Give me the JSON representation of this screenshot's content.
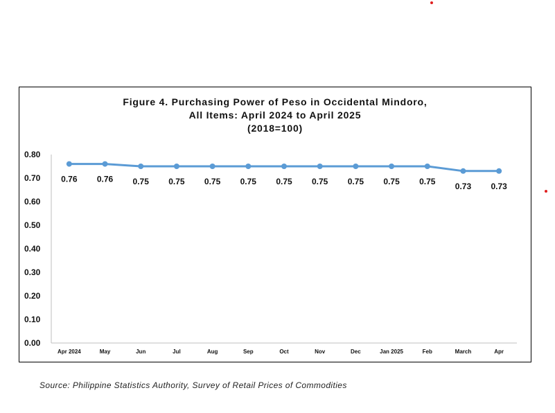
{
  "chart_data": {
    "type": "line",
    "title": [
      "Figure 4. Purchasing Power of Peso in Occidental Mindoro,",
      "All Items: April 2024 to April 2025",
      "(2018=100)"
    ],
    "categories": [
      "Apr 2024",
      "May",
      "Jun",
      "Jul",
      "Aug",
      "Sep",
      "Oct",
      "Nov",
      "Dec",
      "Jan 2025",
      "Feb",
      "March",
      "Apr"
    ],
    "series": [
      {
        "values": [
          0.76,
          0.76,
          0.75,
          0.75,
          0.75,
          0.75,
          0.75,
          0.75,
          0.75,
          0.75,
          0.75,
          0.73,
          0.73
        ],
        "labels": [
          "0.76",
          "0.76",
          "0.75",
          "0.75",
          "0.75",
          "0.75",
          "0.75",
          "0.75",
          "0.75",
          "0.75",
          "0.75",
          "0.73",
          "0.73"
        ]
      }
    ],
    "yticks": [
      "0.80",
      "0.70",
      "0.60",
      "0.50",
      "0.40",
      "0.30",
      "0.20",
      "0.10",
      "0.00"
    ],
    "ylim": [
      0,
      0.8
    ],
    "grid": false,
    "legend": "none",
    "line_color": "#5b9bd5"
  },
  "source_note": "Source: Philippine Statistics Authority, Survey of Retail Prices of Commodities"
}
